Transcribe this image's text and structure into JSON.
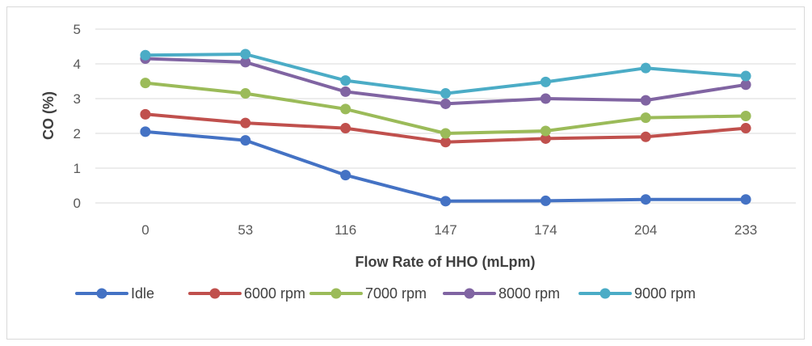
{
  "chart_data": {
    "type": "line",
    "title": "",
    "xlabel": "Flow Rate of HHO (mLpm)",
    "ylabel": "CO (%)",
    "categories": [
      "0",
      "53",
      "116",
      "147",
      "174",
      "204",
      "233"
    ],
    "ylim": [
      0,
      5
    ],
    "yticks": [
      "0",
      "1",
      "2",
      "3",
      "4",
      "5"
    ],
    "grid": true,
    "legend_position": "bottom",
    "series": [
      {
        "name": "Idle",
        "color": "#4472c4",
        "values": [
          2.05,
          1.8,
          0.8,
          0.05,
          0.06,
          0.1,
          0.1
        ]
      },
      {
        "name": "6000 rpm",
        "color": "#c0504d",
        "values": [
          2.55,
          2.3,
          2.15,
          1.75,
          1.85,
          1.9,
          2.15
        ]
      },
      {
        "name": "7000 rpm",
        "color": "#9bbb59",
        "values": [
          3.45,
          3.15,
          2.7,
          2.0,
          2.07,
          2.45,
          2.5
        ]
      },
      {
        "name": "8000 rpm",
        "color": "#8064a2",
        "values": [
          4.15,
          4.05,
          3.2,
          2.85,
          3.0,
          2.95,
          3.4
        ]
      },
      {
        "name": "9000 rpm",
        "color": "#4bacc6",
        "values": [
          4.25,
          4.28,
          3.52,
          3.15,
          3.48,
          3.88,
          3.65
        ]
      }
    ]
  }
}
